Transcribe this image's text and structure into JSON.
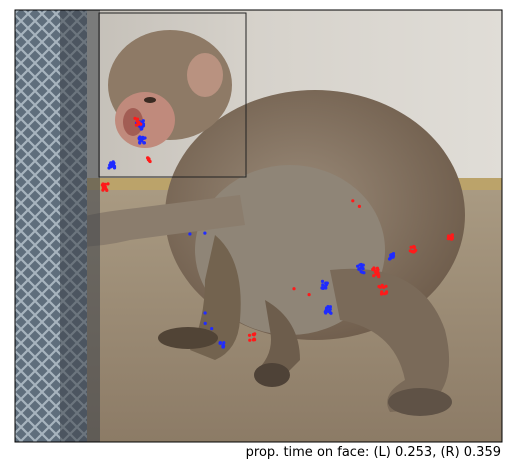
{
  "caption": "prop. time on face: (L) 0.253, (R) 0.359",
  "colors": {
    "left_eye": "#1f2bff",
    "right_eye": "#ff1a1a",
    "face_box": "#222222"
  },
  "proportions": {
    "left": 0.253,
    "right": 0.359
  }
}
